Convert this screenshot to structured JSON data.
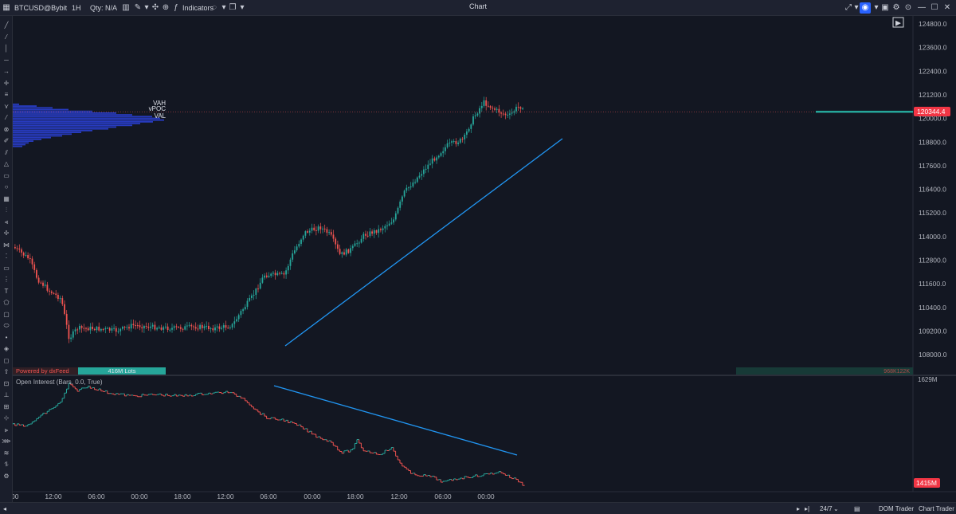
{
  "toolbar": {
    "symbol": "BTCUSD@Bybit",
    "timeframe": "1H",
    "qty_label": "Qty: N/A",
    "indicators_label": "Indicators",
    "title": "Chart"
  },
  "price_axis": {
    "labels": [
      "124800.0",
      "123600.0",
      "122400.0",
      "121200.0",
      "120000.0",
      "118800.0",
      "117600.0",
      "116400.0",
      "115200.0",
      "114000.0",
      "112800.0",
      "111600.0",
      "110400.0",
      "109200.0",
      "108000.0"
    ],
    "current_price": "120344.4",
    "current_price_color": "#f23645"
  },
  "oi_axis": {
    "top_label": "1629M",
    "current_label": "1415M"
  },
  "time_axis": {
    "labels": [
      "00",
      "12:00",
      "06:00",
      "00:00",
      "18:00",
      "12:00",
      "06:00",
      "00:00",
      "18:00",
      "12:00",
      "06:00",
      "00:00"
    ]
  },
  "volume_profile": {
    "vah_label": "VAH",
    "vpoc_label": "vPOC",
    "val_label": "VAL",
    "powered_by": "Powered by dxFeed",
    "lots_label": "416M Lots",
    "right_volume_label": "968K122K"
  },
  "oi_panel": {
    "title": "Open Interest (Bars, 0.0, True)"
  },
  "bottombar": {
    "session": "24/7",
    "dom_trader": "DOM Trader",
    "chart_trader": "Chart Trader"
  },
  "colors": {
    "background": "#131722",
    "bull": "#26a69a",
    "bear": "#ef5350",
    "trendline": "#2196f3",
    "profile": "#2a3fd0"
  },
  "icons": {
    "crosshair": "crosshair-icon",
    "camera": "camera-icon",
    "settings": "gear-icon",
    "minimize": "minimize-icon",
    "maximize": "maximize-icon",
    "close": "close-icon"
  }
}
